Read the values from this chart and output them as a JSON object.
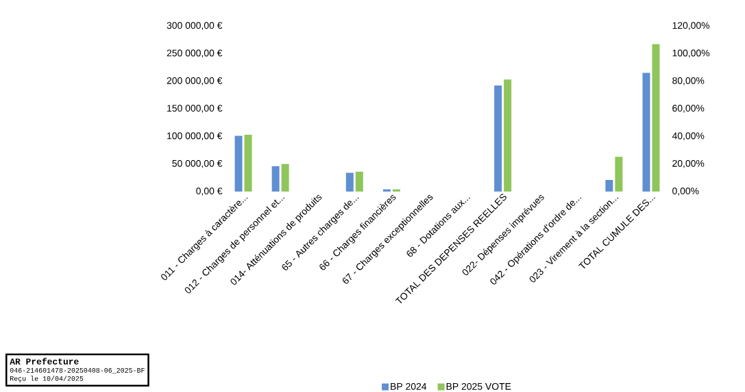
{
  "chart_data": {
    "type": "bar",
    "categories": [
      "011 - Charges à caractère...",
      "012 - Charges de personnel et...",
      "014- Atténuations de produits",
      "65 - Autres charges de...",
      "66 - Charges financières",
      "67 - Charges exceptionnelles",
      "68 - Dotations aux...",
      "TOTAL DES DEPENSES REELLES",
      "022- Dépenses imprévues",
      "042 - Opérations d'ordre de...",
      "023 - Virement à la section...",
      "TOTAL CUMULE DES..."
    ],
    "series": [
      {
        "name": "BP 2024",
        "color": "#5f8fd0",
        "values": [
          101000,
          46000,
          null,
          34000,
          4000,
          null,
          null,
          192000,
          null,
          null,
          21000,
          215000
        ]
      },
      {
        "name": "BP 2025 VOTE",
        "color": "#8fc55a",
        "values": [
          103000,
          50000,
          null,
          36000,
          4000,
          null,
          null,
          203000,
          null,
          null,
          63000,
          267000
        ]
      }
    ],
    "ylim": [
      0,
      300000
    ],
    "yticks": [
      {
        "value": 0,
        "label": "0,00 €"
      },
      {
        "value": 50000,
        "label": "50 000,00 €"
      },
      {
        "value": 100000,
        "label": "100 000,00 €"
      },
      {
        "value": 150000,
        "label": "150 000,00 €"
      },
      {
        "value": 200000,
        "label": "200 000,00 €"
      },
      {
        "value": 250000,
        "label": "250 000,00 €"
      },
      {
        "value": 300000,
        "label": "300 000,00 €"
      }
    ],
    "y2lim": [
      0,
      120
    ],
    "y2ticks": [
      {
        "value": 0,
        "label": "0,00%"
      },
      {
        "value": 20,
        "label": "20,00%"
      },
      {
        "value": 40,
        "label": "40,00%"
      },
      {
        "value": 60,
        "label": "60,00%"
      },
      {
        "value": 80,
        "label": "80,00%"
      },
      {
        "value": 100,
        "label": "100,00%"
      },
      {
        "value": 120,
        "label": "120,00%"
      }
    ],
    "legend": "bottom",
    "annotations": [
      "AR Prefecture",
      "046-214601478-20250408-06_2025-BF",
      "Reçu le 10/04/2025"
    ]
  }
}
